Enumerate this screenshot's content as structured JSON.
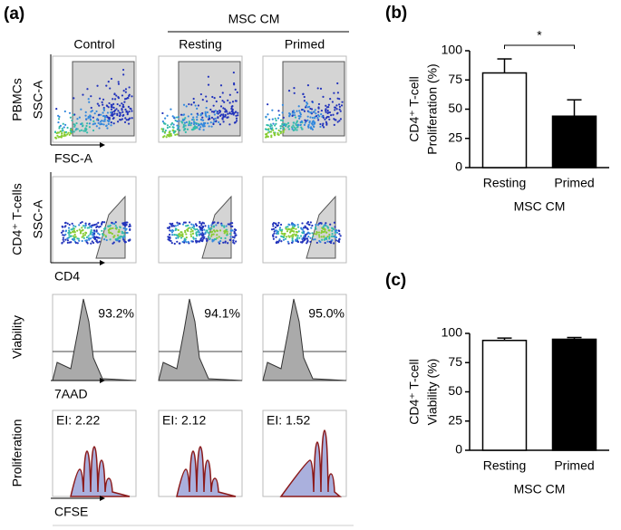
{
  "panel_a": {
    "label": "(a)",
    "group_header": "MSC CM",
    "columns": [
      "Control",
      "Resting",
      "Primed"
    ],
    "rows": [
      "PBMCs",
      "CD4⁺ T-cells",
      "Viability",
      "Proliferation"
    ],
    "y_axis_labels": [
      "SSC-A",
      "SSC-A"
    ],
    "x_axis_labels": [
      "FSC-A",
      "CD4",
      "7AAD",
      "CFSE"
    ],
    "viability": [
      "93.2%",
      "94.1%",
      "95.0%"
    ],
    "ei": [
      "EI: 2.22",
      "EI: 2.12",
      "EI: 1.52"
    ]
  },
  "chart_data": [
    {
      "type": "bar",
      "label": "(b)",
      "ylabel": [
        "CD4⁺ T-cell",
        "Proliferation (%)"
      ],
      "xlabel": "MSC CM",
      "categories": [
        "Resting",
        "Primed"
      ],
      "values": [
        81,
        44
      ],
      "errors": [
        12,
        14
      ],
      "colors": [
        "#ffffff",
        "#000000"
      ],
      "ylim": [
        0,
        100
      ],
      "yticks": [
        0,
        25,
        50,
        75,
        100
      ],
      "significance": "*"
    },
    {
      "type": "bar",
      "label": "(c)",
      "ylabel": [
        "CD4⁺ T-cell",
        "Viability (%)"
      ],
      "xlabel": "MSC CM",
      "categories": [
        "Resting",
        "Primed"
      ],
      "values": [
        94,
        95
      ],
      "errors": [
        2,
        1.5
      ],
      "colors": [
        "#ffffff",
        "#000000"
      ],
      "ylim": [
        0,
        100
      ],
      "yticks": [
        0,
        25,
        50,
        75,
        100
      ]
    }
  ]
}
